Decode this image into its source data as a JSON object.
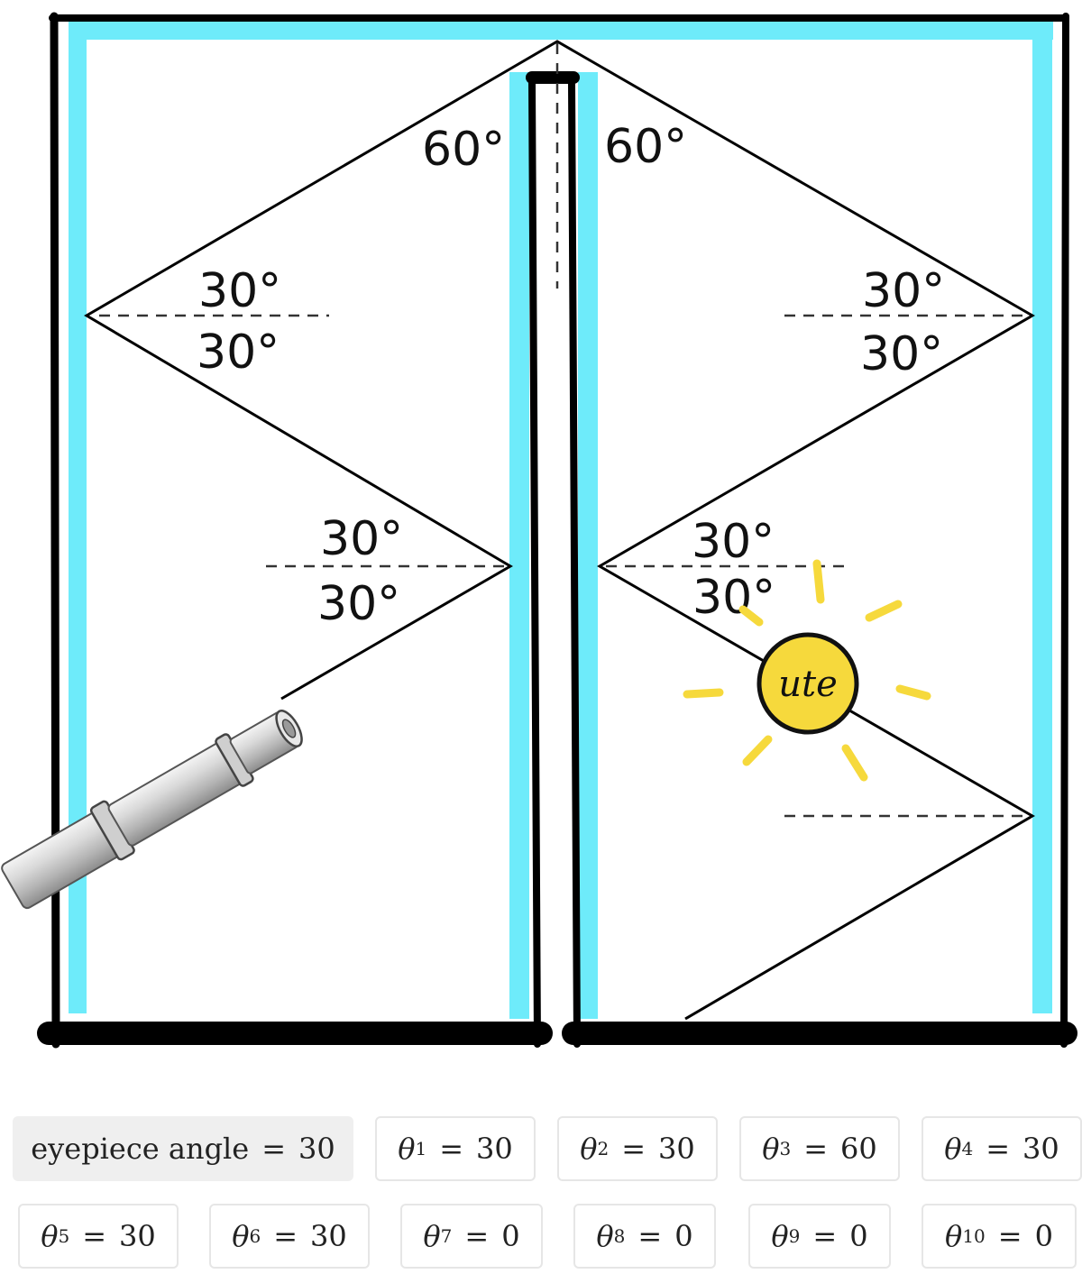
{
  "diagram": {
    "angles": {
      "top_left": "60°",
      "top_right": "60°",
      "left_upper_above": "30°",
      "left_upper_below": "30°",
      "right_upper_above": "30°",
      "right_upper_below": "30°",
      "left_lower_above": "30°",
      "left_lower_below": "30°",
      "right_lower_above": "30°",
      "right_lower_below": "30°"
    },
    "sun_text": "ute",
    "colors": {
      "mirror": "#6EEBFA",
      "frame": "#000000",
      "sun": "#F6D93C",
      "ray": "#000000"
    },
    "icons": [
      "eyepiece-telescope-icon",
      "sun-icon"
    ]
  },
  "controls": {
    "eyepiece": {
      "label": "eyepiece angle",
      "value": "30"
    },
    "thetas": [
      {
        "symbol": "θ",
        "index": "1",
        "value": "30"
      },
      {
        "symbol": "θ",
        "index": "2",
        "value": "30"
      },
      {
        "symbol": "θ",
        "index": "3",
        "value": "60"
      },
      {
        "symbol": "θ",
        "index": "4",
        "value": "30"
      },
      {
        "symbol": "θ",
        "index": "5",
        "value": "30"
      },
      {
        "symbol": "θ",
        "index": "6",
        "value": "30"
      },
      {
        "symbol": "θ",
        "index": "7",
        "value": "0"
      },
      {
        "symbol": "θ",
        "index": "8",
        "value": "0"
      },
      {
        "symbol": "θ",
        "index": "9",
        "value": "0"
      },
      {
        "symbol": "θ",
        "index": "10",
        "value": "0"
      }
    ],
    "equals": "="
  }
}
